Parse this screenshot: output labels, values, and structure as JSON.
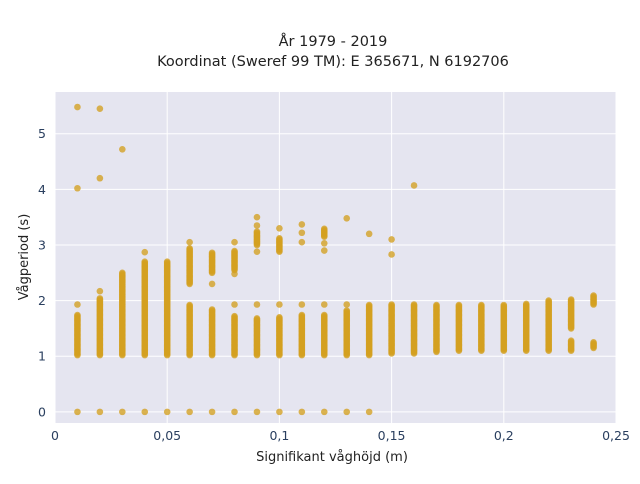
{
  "chart_data": {
    "type": "scatter",
    "title_lines": [
      "År 1979 - 2019",
      "Koordinat (Sweref 99 TM): E 365671, N 6192706"
    ],
    "xlabel": "Signifikant våghöjd (m)",
    "ylabel": "Vågperiod (s)",
    "xlim": [
      0,
      0.25
    ],
    "ylim": [
      -0.2,
      5.75
    ],
    "x_ticks": [
      0,
      0.05,
      0.1,
      0.15,
      0.2,
      0.25
    ],
    "x_tick_labels": [
      "0",
      "0,05",
      "0,1",
      "0,15",
      "0,2",
      "0,25"
    ],
    "y_ticks": [
      0,
      1,
      2,
      3,
      4,
      5
    ],
    "y_tick_labels": [
      "0",
      "1",
      "2",
      "3",
      "4",
      "5"
    ],
    "grid": true,
    "colors": {
      "points": "#d4a020",
      "plot_background": "#e5e5f0",
      "grid": "#ffffff",
      "text": "#2a3f5f"
    },
    "columns": [
      {
        "x": 0.01,
        "bands": [
          [
            1.02,
            1.75
          ]
        ],
        "extra": [
          1.93,
          4.02,
          5.48
        ],
        "zero": true
      },
      {
        "x": 0.02,
        "bands": [
          [
            1.02,
            2.05
          ]
        ],
        "extra": [
          2.17,
          4.2,
          5.45
        ],
        "zero": true
      },
      {
        "x": 0.03,
        "bands": [
          [
            1.02,
            2.5
          ]
        ],
        "extra": [
          4.72
        ],
        "zero": true
      },
      {
        "x": 0.04,
        "bands": [
          [
            1.02,
            2.7
          ]
        ],
        "extra": [
          2.87
        ],
        "zero": true
      },
      {
        "x": 0.05,
        "bands": [
          [
            1.02,
            2.7
          ]
        ],
        "extra": [],
        "zero": true
      },
      {
        "x": 0.06,
        "bands": [
          [
            1.02,
            1.93
          ],
          [
            2.3,
            2.95
          ]
        ],
        "extra": [
          3.05
        ],
        "zero": true
      },
      {
        "x": 0.07,
        "bands": [
          [
            1.02,
            1.85
          ],
          [
            2.5,
            2.87
          ]
        ],
        "extra": [
          2.3
        ],
        "zero": true
      },
      {
        "x": 0.08,
        "bands": [
          [
            1.02,
            1.72
          ],
          [
            2.55,
            2.9
          ]
        ],
        "extra": [
          1.93,
          2.48,
          3.05
        ],
        "zero": true
      },
      {
        "x": 0.09,
        "bands": [
          [
            1.02,
            1.68
          ],
          [
            3.0,
            3.25
          ]
        ],
        "extra": [
          1.93,
          2.88,
          3.35,
          3.5
        ],
        "zero": true
      },
      {
        "x": 0.1,
        "bands": [
          [
            1.02,
            1.7
          ],
          [
            2.88,
            3.12
          ]
        ],
        "extra": [
          1.93,
          3.3
        ],
        "zero": true
      },
      {
        "x": 0.11,
        "bands": [
          [
            1.02,
            1.75
          ]
        ],
        "extra": [
          1.93,
          3.05,
          3.22,
          3.37
        ],
        "zero": true
      },
      {
        "x": 0.12,
        "bands": [
          [
            1.02,
            1.75
          ],
          [
            3.15,
            3.3
          ]
        ],
        "extra": [
          1.93,
          2.9,
          3.03
        ],
        "zero": true
      },
      {
        "x": 0.13,
        "bands": [
          [
            1.02,
            1.83
          ]
        ],
        "extra": [
          1.93,
          3.48
        ],
        "zero": true
      },
      {
        "x": 0.14,
        "bands": [
          [
            1.02,
            1.93
          ]
        ],
        "extra": [
          3.2
        ],
        "zero": true
      },
      {
        "x": 0.15,
        "bands": [
          [
            1.05,
            1.93
          ]
        ],
        "extra": [
          2.83,
          3.1
        ],
        "zero": false
      },
      {
        "x": 0.16,
        "bands": [
          [
            1.05,
            1.93
          ]
        ],
        "extra": [
          4.07
        ],
        "zero": false
      },
      {
        "x": 0.17,
        "bands": [
          [
            1.08,
            1.93
          ]
        ],
        "extra": [],
        "zero": false
      },
      {
        "x": 0.18,
        "bands": [
          [
            1.1,
            1.92
          ]
        ],
        "extra": [],
        "zero": false
      },
      {
        "x": 0.19,
        "bands": [
          [
            1.1,
            1.93
          ]
        ],
        "extra": [],
        "zero": false
      },
      {
        "x": 0.2,
        "bands": [
          [
            1.1,
            1.93
          ]
        ],
        "extra": [],
        "zero": false
      },
      {
        "x": 0.21,
        "bands": [
          [
            1.1,
            1.95
          ]
        ],
        "extra": [],
        "zero": false
      },
      {
        "x": 0.22,
        "bands": [
          [
            1.1,
            2.0
          ]
        ],
        "extra": [],
        "zero": false
      },
      {
        "x": 0.23,
        "bands": [
          [
            1.5,
            2.02
          ],
          [
            1.1,
            1.28
          ]
        ],
        "extra": [],
        "zero": false
      },
      {
        "x": 0.24,
        "bands": [
          [
            1.93,
            2.1
          ],
          [
            1.15,
            1.25
          ]
        ],
        "extra": [],
        "zero": false
      }
    ]
  }
}
